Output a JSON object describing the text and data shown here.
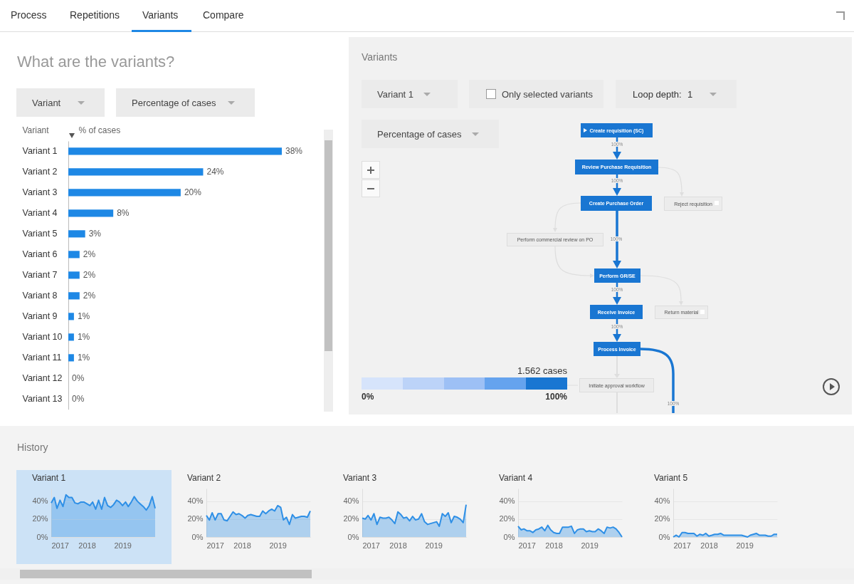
{
  "chart_data": [
    {
      "type": "bar",
      "orientation": "horizontal",
      "title": "What are the variants?",
      "xlabel": "% of cases",
      "ylabel": "Variant",
      "color": "#1e88e5",
      "categories": [
        "Variant 1",
        "Variant 2",
        "Variant 3",
        "Variant 4",
        "Variant 5",
        "Variant 6",
        "Variant 7",
        "Variant 8",
        "Variant 9",
        "Variant 10",
        "Variant 11",
        "Variant 12",
        "Variant 13"
      ],
      "values": [
        38,
        24,
        20,
        8,
        3,
        2,
        2,
        2,
        1,
        1,
        1,
        0,
        0
      ],
      "value_labels": [
        "38%",
        "24%",
        "20%",
        "8%",
        "3%",
        "2%",
        "2%",
        "2%",
        "1%",
        "1%",
        "1%",
        "0%",
        "0%"
      ],
      "annotations": [
        "Process",
        "Repetitions",
        "Variants",
        "Compare",
        "Variant",
        "Percentage of cases",
        "History"
      ]
    },
    {
      "type": "other",
      "title": "Variants",
      "annotations": [
        "Variant 1",
        "Only selected variants",
        "Loop depth:",
        "1",
        "Percentage of cases",
        "Create requisition (SC)",
        "Review Purchase Requisition",
        "Create Purchase Order",
        "Reject requisition",
        "Perform commercial review on PO",
        "Perform GR/SE",
        "Receive Invoice",
        "Return material",
        "Process Invoice",
        "Initiate approval workflow",
        "100%",
        "100%",
        "100%",
        "100%",
        "100%",
        "100%",
        "1.562 cases",
        "0%",
        "100%"
      ]
    },
    {
      "type": "area",
      "title": "Variant 1",
      "xlim": [
        "2017-01",
        "2019-12"
      ],
      "xticks": [
        "2017",
        "2018",
        "2019"
      ],
      "ylim": [
        0,
        54
      ],
      "yticks": [
        {
          "value": 0,
          "label": "0%"
        },
        {
          "value": 20,
          "label": "20%"
        },
        {
          "value": 40,
          "label": "40%"
        }
      ],
      "grid": "y",
      "x": [
        "2017-01",
        "2017-02",
        "2017-03",
        "2017-04",
        "2017-05",
        "2017-06",
        "2017-07",
        "2017-08",
        "2017-09",
        "2017-10",
        "2017-11",
        "2017-12",
        "2018-01",
        "2018-02",
        "2018-03",
        "2018-04",
        "2018-05",
        "2018-06",
        "2018-07",
        "2018-08",
        "2018-09",
        "2018-10",
        "2018-11",
        "2018-12",
        "2019-01",
        "2019-02",
        "2019-03",
        "2019-04",
        "2019-05",
        "2019-06",
        "2019-07",
        "2019-08",
        "2019-09",
        "2019-10",
        "2019-11",
        "2019-12"
      ],
      "series": [
        {
          "color": "#2e8fe6",
          "values": [
            38,
            44,
            32,
            41,
            34,
            47,
            44,
            44,
            38,
            37,
            39,
            39,
            37,
            35,
            39,
            31,
            41,
            31,
            44,
            35,
            33,
            36,
            41,
            39,
            35,
            39,
            34,
            39,
            45,
            40,
            37,
            34,
            30,
            35,
            45,
            32
          ]
        }
      ]
    },
    {
      "type": "area",
      "title": "Variant 2",
      "xlim": [
        "2017-01",
        "2019-12"
      ],
      "xticks": [
        "2017",
        "2018",
        "2019"
      ],
      "ylim": [
        0,
        54
      ],
      "yticks": [
        {
          "value": 0,
          "label": "0%"
        },
        {
          "value": 20,
          "label": "20%"
        },
        {
          "value": 40,
          "label": "40%"
        }
      ],
      "grid": "y",
      "x": [
        "2017-01",
        "2017-02",
        "2017-03",
        "2017-04",
        "2017-05",
        "2017-06",
        "2017-07",
        "2017-08",
        "2017-09",
        "2017-10",
        "2017-11",
        "2017-12",
        "2018-01",
        "2018-02",
        "2018-03",
        "2018-04",
        "2018-05",
        "2018-06",
        "2018-07",
        "2018-08",
        "2018-09",
        "2018-10",
        "2018-11",
        "2018-12",
        "2019-01",
        "2019-02",
        "2019-03",
        "2019-04",
        "2019-05",
        "2019-06",
        "2019-07",
        "2019-08",
        "2019-09",
        "2019-10",
        "2019-11",
        "2019-12"
      ],
      "series": [
        {
          "color": "#2e8fe6",
          "values": [
            24,
            19,
            27,
            19,
            26,
            26,
            19,
            18,
            23,
            28,
            25,
            26,
            24,
            21,
            24,
            25,
            24,
            23,
            23,
            29,
            26,
            29,
            31,
            29,
            35,
            33,
            19,
            22,
            14,
            25,
            21,
            22,
            23,
            23,
            22,
            29
          ]
        }
      ]
    },
    {
      "type": "area",
      "title": "Variant 3",
      "xlim": [
        "2017-01",
        "2019-12"
      ],
      "xticks": [
        "2017",
        "2018",
        "2019"
      ],
      "ylim": [
        0,
        54
      ],
      "yticks": [
        {
          "value": 0,
          "label": "0%"
        },
        {
          "value": 20,
          "label": "20%"
        },
        {
          "value": 40,
          "label": "40%"
        }
      ],
      "grid": "y",
      "x": [
        "2017-01",
        "2017-02",
        "2017-03",
        "2017-04",
        "2017-05",
        "2017-06",
        "2017-07",
        "2017-08",
        "2017-09",
        "2017-10",
        "2017-11",
        "2017-12",
        "2018-01",
        "2018-02",
        "2018-03",
        "2018-04",
        "2018-05",
        "2018-06",
        "2018-07",
        "2018-08",
        "2018-09",
        "2018-10",
        "2018-11",
        "2018-12",
        "2019-01",
        "2019-02",
        "2019-03",
        "2019-04",
        "2019-05",
        "2019-06",
        "2019-07",
        "2019-08",
        "2019-09",
        "2019-10",
        "2019-11",
        "2019-12"
      ],
      "series": [
        {
          "color": "#2e8fe6",
          "values": [
            21,
            20,
            24,
            19,
            26,
            14,
            22,
            21,
            21,
            22,
            19,
            15,
            28,
            25,
            21,
            22,
            18,
            23,
            19,
            20,
            26,
            17,
            14,
            15,
            16,
            17,
            12,
            26,
            23,
            27,
            16,
            23,
            22,
            20,
            16,
            36
          ]
        }
      ]
    },
    {
      "type": "area",
      "title": "Variant 4",
      "xlim": [
        "2017-01",
        "2019-12"
      ],
      "xticks": [
        "2017",
        "2018",
        "2019"
      ],
      "ylim": [
        0,
        54
      ],
      "yticks": [
        {
          "value": 0,
          "label": "0%"
        },
        {
          "value": 20,
          "label": "20%"
        },
        {
          "value": 40,
          "label": "40%"
        }
      ],
      "grid": "y",
      "x": [
        "2017-01",
        "2017-02",
        "2017-03",
        "2017-04",
        "2017-05",
        "2017-06",
        "2017-07",
        "2017-08",
        "2017-09",
        "2017-10",
        "2017-11",
        "2017-12",
        "2018-01",
        "2018-02",
        "2018-03",
        "2018-04",
        "2018-05",
        "2018-06",
        "2018-07",
        "2018-08",
        "2018-09",
        "2018-10",
        "2018-11",
        "2018-12",
        "2019-01",
        "2019-02",
        "2019-03",
        "2019-04",
        "2019-05",
        "2019-06",
        "2019-07",
        "2019-08",
        "2019-09",
        "2019-10",
        "2019-11",
        "2019-12"
      ],
      "series": [
        {
          "color": "#2e8fe6",
          "values": [
            12,
            8,
            9,
            7,
            7,
            5,
            8,
            9,
            11,
            7,
            13,
            8,
            5,
            4,
            4,
            11,
            11,
            11,
            12,
            4,
            8,
            9,
            9,
            6,
            7,
            6,
            6,
            9,
            7,
            4,
            11,
            10,
            11,
            9,
            5,
            0
          ]
        }
      ]
    },
    {
      "type": "area",
      "title": "Variant 5",
      "xlim": [
        "2017-01",
        "2019-12"
      ],
      "xticks": [
        "2017",
        "2018",
        "2019"
      ],
      "ylim": [
        0,
        54
      ],
      "yticks": [
        {
          "value": 0,
          "label": "0%"
        },
        {
          "value": 20,
          "label": "20%"
        },
        {
          "value": 40,
          "label": "40%"
        }
      ],
      "grid": "y",
      "x": [
        "2017-01",
        "2017-02",
        "2017-03",
        "2017-04",
        "2017-05",
        "2017-06",
        "2017-07",
        "2017-08",
        "2017-09",
        "2017-10",
        "2017-11",
        "2017-12",
        "2018-01",
        "2018-02",
        "2018-03",
        "2018-04",
        "2018-05",
        "2018-06",
        "2018-07",
        "2018-08",
        "2018-09",
        "2018-10",
        "2018-11",
        "2018-12",
        "2019-01",
        "2019-02",
        "2019-03",
        "2019-04",
        "2019-05",
        "2019-06",
        "2019-07",
        "2019-08",
        "2019-09",
        "2019-10",
        "2019-11",
        "2019-12"
      ],
      "series": [
        {
          "color": "#2e8fe6",
          "values": [
            0,
            2,
            0,
            5,
            5,
            4,
            4,
            4,
            1,
            3,
            2,
            4,
            1,
            2,
            3,
            3,
            4,
            2,
            2,
            2,
            2,
            2,
            2,
            2,
            1,
            0,
            2,
            3,
            4,
            2,
            2,
            2,
            1,
            1,
            3,
            3
          ]
        }
      ]
    }
  ]
}
